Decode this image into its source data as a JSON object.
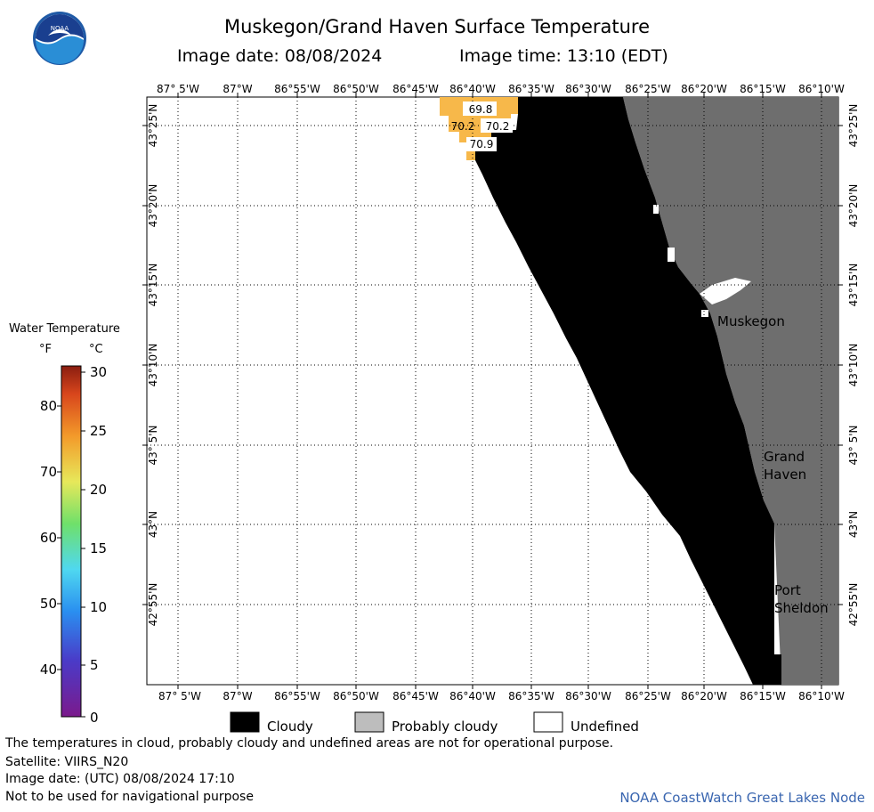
{
  "title": "Muskegon/Grand Haven Surface Temperature",
  "image_date": "Image date: 08/08/2024",
  "image_time": "Image time: 13:10 (EDT)",
  "logo_text": "NOAA",
  "lon_labels": [
    "87° 5'W",
    "87°W",
    "86°55'W",
    "86°50'W",
    "86°45'W",
    "86°40'W",
    "86°35'W",
    "86°30'W",
    "86°25'W",
    "86°20'W",
    "86°15'W",
    "86°10'W"
  ],
  "lat_labels": [
    "43°25'N",
    "43°20'N",
    "43°15'N",
    "43°10'N",
    "43° 5'N",
    "43°N",
    "42°55'N"
  ],
  "place_labels": [
    "Muskegon",
    "Grand",
    "Haven",
    "Port",
    "Sheldon"
  ],
  "temp_values": [
    "69.8",
    "70.2",
    "70.2",
    "70.9"
  ],
  "colorbar": {
    "title": "Water Temperature",
    "unit_f": "°F",
    "unit_c": "°C",
    "f_ticks": [
      "80",
      "70",
      "60",
      "50",
      "40"
    ],
    "c_ticks": [
      "30",
      "25",
      "20",
      "15",
      "10",
      "5",
      "0"
    ]
  },
  "legend": {
    "cloudy": "Cloudy",
    "probably_cloudy": "Probably cloudy",
    "undefined": "Undefined"
  },
  "footer": {
    "disclaimer": "The temperatures in cloud, probably cloudy and undefined areas are not for operational purpose.",
    "satellite": "Satellite: VIIRS_N20",
    "utc_date": "Image date: (UTC) 08/08/2024  17:10",
    "navigation": "Not to be used for navigational purpose",
    "credit": "NOAA CoastWatch Great Lakes Node"
  },
  "colors": {
    "cloudy": "#000000",
    "probably_cloudy": "#6e6e6e",
    "water_temp": "#f7b84a"
  }
}
